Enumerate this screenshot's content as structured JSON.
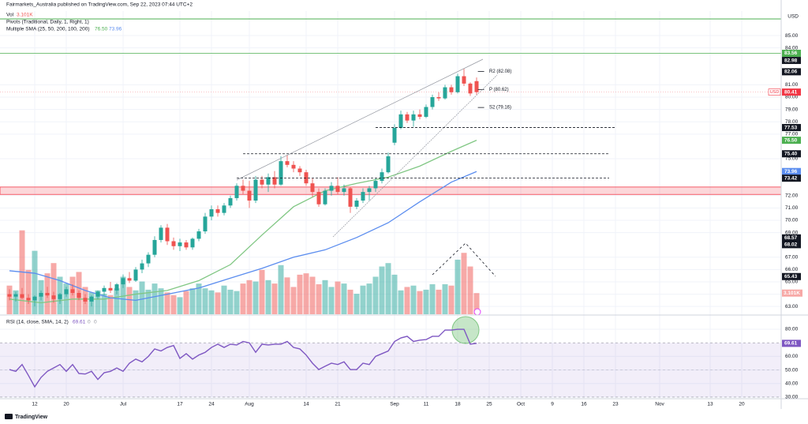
{
  "chart_data": {
    "type": "candlestick",
    "title": "Fairmarkets_Australia published on TradingView.com, Sep 22, 2023 07:44 UTC+2",
    "currency": "USD",
    "pivot_title": "Pivots (Traditional, Daily, 1, Right, 1)",
    "sma_title": "Multiple SMA (25, 50, 200, 100, 200)",
    "volume_title": "Vol",
    "brand": "TradingView",
    "xlim": [
      -1,
      122
    ],
    "xticks": [
      {
        "value": 4,
        "label": "12"
      },
      {
        "value": 9,
        "label": "20"
      },
      {
        "value": 18,
        "label": "Jul"
      },
      {
        "value": 27,
        "label": "17"
      },
      {
        "value": 32,
        "label": "24"
      },
      {
        "value": 38,
        "label": "Aug"
      },
      {
        "value": 47,
        "label": "14"
      },
      {
        "value": 52,
        "label": "21"
      },
      {
        "value": 61,
        "label": "Sep"
      },
      {
        "value": 66,
        "label": "11"
      },
      {
        "value": 71,
        "label": "18"
      },
      {
        "value": 76,
        "label": "25"
      },
      {
        "value": 81,
        "label": "Oct"
      },
      {
        "value": 86,
        "label": "9"
      },
      {
        "value": 91,
        "label": "16"
      },
      {
        "value": 96,
        "label": "23"
      },
      {
        "value": 103,
        "label": "Nov"
      },
      {
        "value": 111,
        "label": "13"
      },
      {
        "value": 116,
        "label": "20"
      }
    ],
    "ylim": [
      62.37,
      86.99
    ],
    "yticks": [
      {
        "value": 85,
        "label": "85.00"
      },
      {
        "value": 84,
        "label": "84.00"
      },
      {
        "value": 81,
        "label": "81.00"
      },
      {
        "value": 80,
        "label": "80.00"
      },
      {
        "value": 79,
        "label": "79.00"
      },
      {
        "value": 78,
        "label": "78.00"
      },
      {
        "value": 77,
        "label": "77.00"
      },
      {
        "value": 75,
        "label": "75.00"
      },
      {
        "value": 72,
        "label": "72.00"
      },
      {
        "value": 71,
        "label": "71.00"
      },
      {
        "value": 70,
        "label": "70.00"
      },
      {
        "value": 69,
        "label": "69.00"
      },
      {
        "value": 67,
        "label": "67.00"
      },
      {
        "value": 66,
        "label": "66.00"
      },
      {
        "value": 65,
        "label": "65.00"
      },
      {
        "value": 64,
        "label": "64.00"
      },
      {
        "value": 63,
        "label": "63.00"
      }
    ],
    "grid": true,
    "up_color": "#26a69a",
    "down_color": "#ef5350",
    "open": [
      64.0,
      63.8,
      64.0,
      63.7,
      63.5,
      63.8,
      64.1,
      63.9,
      63.6,
      64.0,
      64.4,
      64.1,
      63.7,
      63.4,
      63.8,
      64.2,
      64.5,
      64.3,
      64.8,
      65.3,
      65.1,
      66.0,
      66.5,
      67.2,
      68.4,
      69.4,
      68.3,
      67.9,
      68.2,
      67.8,
      68.5,
      69.1,
      70.3,
      70.9,
      70.6,
      71.2,
      71.8,
      72.8,
      72.4,
      71.6,
      73.3,
      72.9,
      73.5,
      72.9,
      74.8,
      74.5,
      74.2,
      73.9,
      73.0,
      72.3,
      71.3,
      72.4,
      72.8,
      72.3,
      72.6,
      71.1,
      71.6,
      72.3,
      72.6,
      73.2,
      73.9,
      76.3,
      77.5,
      78.6,
      78.1,
      78.6,
      78.4,
      79.2,
      80.0,
      79.9,
      80.8,
      80.4,
      81.7,
      81.1,
      81.3
    ],
    "high": [
      64.4,
      64.2,
      64.5,
      64.0,
      63.9,
      64.3,
      64.6,
      64.2,
      64.1,
      64.6,
      64.8,
      64.3,
      64.0,
      63.9,
      64.3,
      64.7,
      65.0,
      64.9,
      65.6,
      65.8,
      66.2,
      66.8,
      67.4,
      68.7,
      69.6,
      69.7,
      68.6,
      68.5,
      68.4,
      68.6,
      69.3,
      70.6,
      71.2,
      71.2,
      71.4,
      72.0,
      73.0,
      73.3,
      73.2,
      73.6,
      73.6,
      73.8,
      74.0,
      75.2,
      75.3,
      74.8,
      74.4,
      74.1,
      73.4,
      72.6,
      72.6,
      73.1,
      73.5,
      72.9,
      72.7,
      71.8,
      72.6,
      72.8,
      73.4,
      74.2,
      75.5,
      77.8,
      78.9,
      78.8,
      78.9,
      79.0,
      79.4,
      80.2,
      80.4,
      81.0,
      81.0,
      81.9,
      82.3,
      81.2,
      81.6
    ],
    "low": [
      63.5,
      63.4,
      63.6,
      63.2,
      63.0,
      63.5,
      63.7,
      63.3,
      63.2,
      63.8,
      63.9,
      63.5,
      63.2,
      63.0,
      63.6,
      63.9,
      64.1,
      64.0,
      64.5,
      64.9,
      65.0,
      65.7,
      66.2,
      67.0,
      68.2,
      68.0,
      67.6,
      67.5,
      67.6,
      67.6,
      68.3,
      68.9,
      70.0,
      70.3,
      70.4,
      71.0,
      71.6,
      72.1,
      71.0,
      71.4,
      72.6,
      72.3,
      72.6,
      72.8,
      74.3,
      73.9,
      73.6,
      72.8,
      71.9,
      71.1,
      71.2,
      72.0,
      72.1,
      72.0,
      70.6,
      70.9,
      71.4,
      71.6,
      72.3,
      73.0,
      73.8,
      76.1,
      77.4,
      77.9,
      77.6,
      78.2,
      78.3,
      79.0,
      79.7,
      79.8,
      80.2,
      80.3,
      80.9,
      80.1,
      80.2
    ],
    "close": [
      63.8,
      64.0,
      63.7,
      63.5,
      63.8,
      64.1,
      63.9,
      63.6,
      64.0,
      64.4,
      64.1,
      63.7,
      63.4,
      63.8,
      64.2,
      64.5,
      64.3,
      64.8,
      65.3,
      65.1,
      66.0,
      66.5,
      67.2,
      68.4,
      69.4,
      68.3,
      67.9,
      68.2,
      67.8,
      68.5,
      69.1,
      70.3,
      70.9,
      70.6,
      71.2,
      71.8,
      72.8,
      72.4,
      71.6,
      73.3,
      72.9,
      73.5,
      72.9,
      74.8,
      74.5,
      74.2,
      73.9,
      73.0,
      72.3,
      71.3,
      72.4,
      72.8,
      72.3,
      72.6,
      71.1,
      71.6,
      72.3,
      72.6,
      73.2,
      73.9,
      75.2,
      77.5,
      78.6,
      78.1,
      78.6,
      78.4,
      79.2,
      80.0,
      79.9,
      80.8,
      80.4,
      81.7,
      81.1,
      80.3,
      80.41
    ],
    "volume": {
      "ylim": [
        0,
        12.5
      ],
      "label": "3.101K",
      "values": [
        4.2,
        3.5,
        12.3,
        6.5,
        9.3,
        5,
        6,
        7.5,
        5.5,
        4.5,
        5.5,
        6.2,
        4,
        3.2,
        3.5,
        3,
        2.8,
        3.8,
        5.5,
        4,
        3.5,
        4.8,
        3.6,
        4.5,
        3.8,
        3.2,
        2.8,
        2.5,
        3.4,
        3.8,
        4.5,
        3.8,
        3.5,
        3.2,
        4.2,
        3.6,
        3.4,
        4.5,
        5,
        4.8,
        6.5,
        5,
        4.5,
        7.2,
        5.4,
        4,
        5.8,
        6,
        5.5,
        4.4,
        5,
        4,
        4.8,
        4.5,
        3.6,
        3,
        4.2,
        4.5,
        5.5,
        7,
        7.5,
        5.8,
        3.5,
        4,
        4.2,
        3.4,
        3.6,
        4.4,
        3.6,
        4.4,
        4.2,
        8,
        9,
        7,
        3.101
      ]
    },
    "sma": [
      {
        "color": "#81c784",
        "x": [
          0,
          5,
          10,
          15,
          20,
          25,
          30,
          35,
          40,
          45,
          50,
          55,
          60,
          65,
          70,
          74
        ],
        "values": [
          63.6,
          63.3,
          63.6,
          63.6,
          64.0,
          64.3,
          65.1,
          66.4,
          68.8,
          71.1,
          72.4,
          73.0,
          73.5,
          74.4,
          75.6,
          76.5
        ]
      },
      {
        "color": "#5b8def",
        "x": [
          0,
          4,
          8,
          12,
          16,
          20,
          25,
          30,
          35,
          40,
          45,
          50,
          55,
          60,
          65,
          70,
          74
        ],
        "values": [
          65.9,
          65.7,
          65.1,
          64.3,
          63.7,
          63.5,
          64.0,
          64.5,
          65.3,
          66.1,
          67.0,
          67.6,
          68.6,
          69.8,
          71.5,
          73.1,
          73.96
        ]
      }
    ],
    "zone": {
      "range": [
        72.1,
        72.7
      ],
      "color": "#f23645"
    },
    "hlines": [
      {
        "value": 86.35,
        "color": "#4caf50"
      }
    ],
    "badges": [
      {
        "value": 83.56,
        "color": "#4caf50",
        "line": [
          -1,
          122
        ]
      },
      {
        "value": 82.98,
        "color": "#131722"
      },
      {
        "value": 82.06,
        "color": "#131722"
      },
      {
        "value": 80.41,
        "color": "#f23645",
        "line": [
          -1,
          122
        ]
      },
      {
        "value": 77.53,
        "color": "#131722",
        "line": [
          58,
          96
        ]
      },
      {
        "value": 76.5,
        "label": "76.50",
        "color": "#4caf50"
      },
      {
        "value": {
          "value": 75.4,
          "label": "75.40"
        },
        "color": "#131722",
        "line": [
          37,
          95
        ]
      },
      {
        "value": 73.96,
        "color": "#5b8def"
      },
      {
        "value": 73.42,
        "color": "#131722",
        "line": [
          36,
          95
        ]
      },
      {
        "value": 68.57,
        "color": "#131722"
      },
      {
        "value": 68.02,
        "color": "#131722"
      },
      {
        "value": 65.43,
        "color": "#131722"
      }
    ],
    "pivots": [
      {
        "value": 82.08,
        "label": "R2 (82.08)"
      },
      {
        "value": 80.62,
        "label": "P (80.62)"
      },
      {
        "value": 79.16,
        "label": "S2 (79.16)"
      }
    ],
    "rsi": {
      "title": "RSI (14, close, SMA, 14, 2)",
      "extra": [
        0,
        0
      ],
      "color": "#7e57c2",
      "ylim": [
        28.8,
        89.9
      ],
      "yticks": [
        {
          "value": 80,
          "label": "80.00"
        },
        {
          "value": 60,
          "label": "60.00"
        },
        {
          "value": 50,
          "label": "50.00"
        },
        {
          "value": 40,
          "label": "40.00"
        },
        {
          "value": 30,
          "label": "30.00"
        }
      ],
      "band": [
        30,
        70
      ],
      "guides": [
        70,
        50,
        30
      ],
      "values": [
        50.3,
        49,
        54,
        46,
        37.6,
        44.5,
        49,
        51.5,
        54,
        49,
        54,
        47.4,
        47,
        49,
        43,
        48,
        49,
        51.5,
        49,
        55,
        58,
        56,
        60,
        65.5,
        64,
        66.6,
        68,
        58.5,
        62,
        58,
        61,
        63,
        66.6,
        69,
        66.6,
        69,
        68.4,
        71,
        70,
        63,
        69,
        68.4,
        69,
        69,
        71,
        66.6,
        65.5,
        61,
        55,
        50.3,
        52.7,
        55,
        54,
        56,
        50.3,
        50.3,
        55,
        54,
        60,
        62,
        64,
        71,
        73.6,
        74.8,
        71,
        72,
        72.4,
        74.8,
        74.8,
        79.4,
        79.4,
        80,
        80,
        69,
        69.61
      ]
    }
  }
}
